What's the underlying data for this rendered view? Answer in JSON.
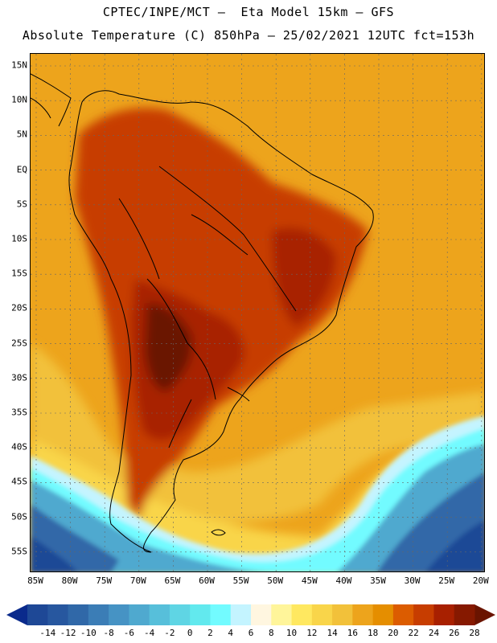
{
  "title_line1": "CPTEC/INPE/MCT –  Eta Model 15km – GFS",
  "title_line2": "Absolute Temperature (C) 850hPa – 25/02/2021 12UTC fct=153h",
  "lat_labels": [
    "15N",
    "10N",
    "5N",
    "EQ",
    "5S",
    "10S",
    "15S",
    "20S",
    "25S",
    "30S",
    "35S",
    "40S",
    "45S",
    "50S",
    "55S"
  ],
  "lon_labels": [
    "85W",
    "80W",
    "75W",
    "70W",
    "65W",
    "60W",
    "55W",
    "50W",
    "45W",
    "40W",
    "35W",
    "30W",
    "25W",
    "20W"
  ],
  "colorbar": {
    "labels": [
      "-14",
      "-12",
      "-10",
      "-8",
      "-6",
      "-4",
      "-2",
      "0",
      "2",
      "4",
      "6",
      "8",
      "10",
      "12",
      "14",
      "16",
      "18",
      "20",
      "22",
      "24",
      "26",
      "28"
    ],
    "colors": [
      "#0a2a8c",
      "#1e4896",
      "#27579f",
      "#3068a8",
      "#3b7db6",
      "#4693c4",
      "#4fa9cf",
      "#57bfda",
      "#5fd5e4",
      "#62e9ee",
      "#72fbff",
      "#c4f4ff",
      "#fff6e0",
      "#fff59a",
      "#ffe860",
      "#f9d54a",
      "#f2c13a",
      "#eda41c",
      "#e58e00",
      "#dc5c00",
      "#c73d00",
      "#a82000",
      "#861900",
      "#6a1400"
    ]
  },
  "legend_arrows": {
    "min_color": "#0a2a8c",
    "max_color": "#6a1400"
  },
  "map_colors": {
    "ocean_warm": "#eda41c",
    "ocean_mid": "#f2c13a",
    "ocean_cool": "#f9d54a",
    "land_hot": "#c73d00",
    "land_hotter": "#a82000",
    "land_hottest": "#6a1400",
    "cold_pale": "#c4f4ff",
    "cold_light": "#72fbff",
    "cold_mid": "#4fa9cf",
    "cold_deep": "#3068a8",
    "cold_deepest": "#1e4896"
  }
}
